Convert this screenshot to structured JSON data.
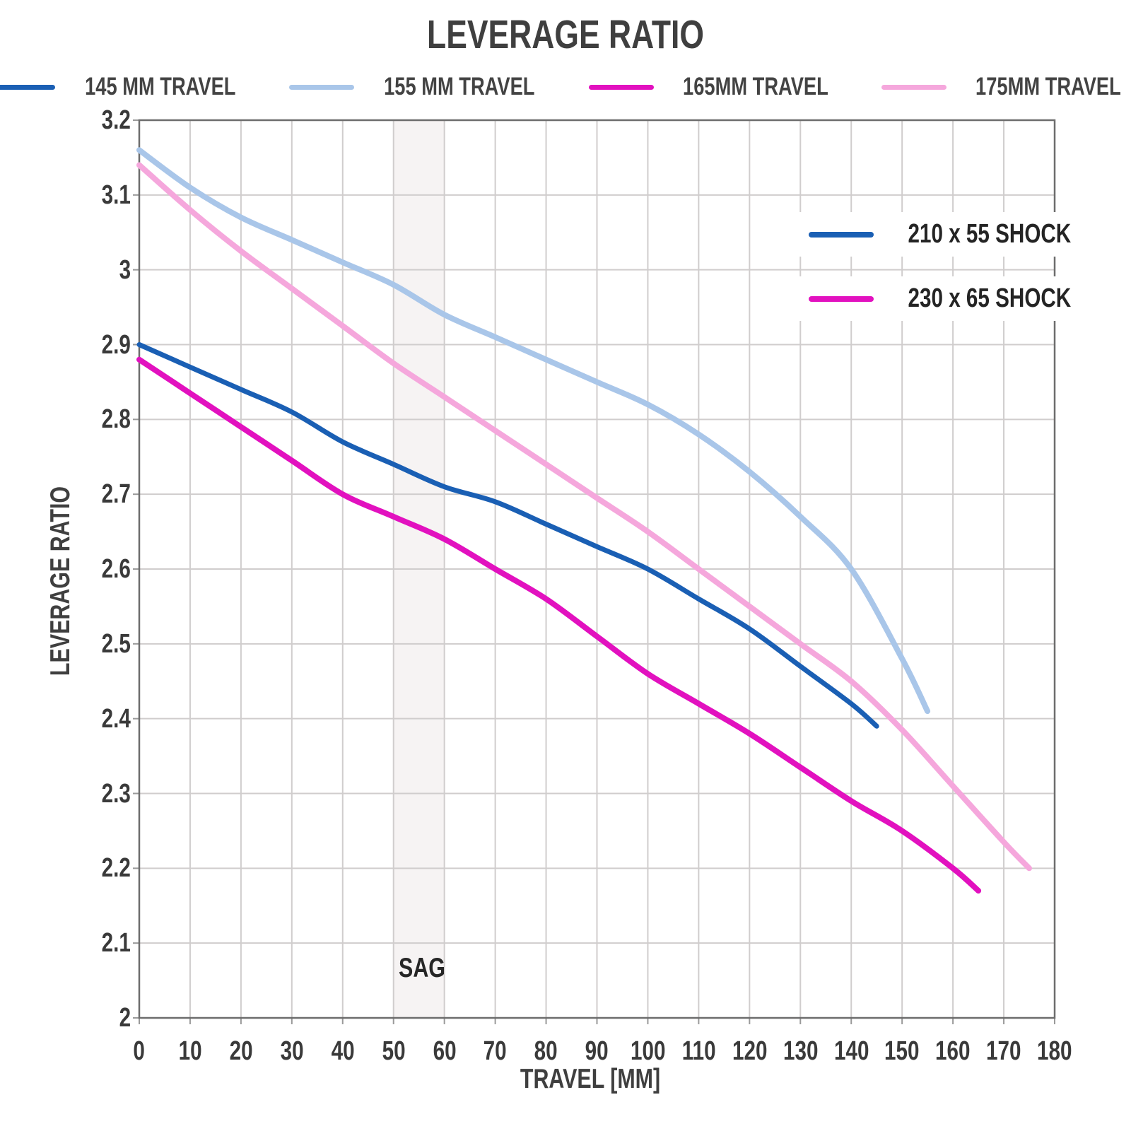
{
  "title": "LEVERAGE RATIO",
  "legend": {
    "items": [
      {
        "label": "145 MM TRAVEL",
        "color": "#1a5fb4"
      },
      {
        "label": "155 MM TRAVEL",
        "color": "#a9c6e9"
      },
      {
        "label": "165MM TRAVEL",
        "color": "#e211bf"
      },
      {
        "label": "175MM TRAVEL",
        "color": "#f5a7dc"
      }
    ]
  },
  "shock_legend": {
    "items": [
      {
        "label": "210 x 55 SHOCK",
        "color": "#1a5fb4"
      },
      {
        "label": "230 x 65 SHOCK",
        "color": "#e211bf"
      }
    ]
  },
  "axes": {
    "x": {
      "label": "TRAVEL [MM]",
      "min": 0,
      "max": 180,
      "tick_step": 10,
      "ticks": [
        "0",
        "10",
        "20",
        "30",
        "40",
        "50",
        "60",
        "70",
        "80",
        "90",
        "100",
        "110",
        "120",
        "130",
        "140",
        "150",
        "160",
        "170",
        "180"
      ]
    },
    "y": {
      "label": "LEVERAGE RATIO",
      "min": 2.0,
      "max": 3.2,
      "tick_step": 0.1,
      "ticks": [
        "3.2",
        "3.1",
        "3",
        "2.9",
        "2.8",
        "2.7",
        "2.6",
        "2.5",
        "2.4",
        "2.3",
        "2.2",
        "2.1",
        "2"
      ]
    }
  },
  "sag_band": {
    "label": "SAG",
    "x_start": 50,
    "x_end": 60,
    "fill": "#f6f3f3"
  },
  "colors": {
    "grid": "#d0cdcd",
    "plot_border": "#6d6d6d",
    "text": "#3f3f3f"
  },
  "chart_data": {
    "type": "line",
    "title": "LEVERAGE RATIO",
    "xlabel": "TRAVEL [MM]",
    "ylabel": "LEVERAGE RATIO",
    "xlim": [
      0,
      180
    ],
    "ylim": [
      2.0,
      3.2
    ],
    "grid": true,
    "legend_position": "top",
    "annotations": [
      {
        "text": "SAG",
        "x_range": [
          50,
          60
        ]
      }
    ],
    "series": [
      {
        "name": "145 MM TRAVEL",
        "shock": "210 x 55 SHOCK",
        "color": "#1a5fb4",
        "width": 7,
        "points": [
          [
            0,
            2.9
          ],
          [
            10,
            2.87
          ],
          [
            20,
            2.84
          ],
          [
            30,
            2.81
          ],
          [
            40,
            2.77
          ],
          [
            50,
            2.74
          ],
          [
            60,
            2.71
          ],
          [
            70,
            2.69
          ],
          [
            80,
            2.66
          ],
          [
            90,
            2.63
          ],
          [
            100,
            2.6
          ],
          [
            110,
            2.56
          ],
          [
            120,
            2.52
          ],
          [
            130,
            2.47
          ],
          [
            140,
            2.42
          ],
          [
            145,
            2.39
          ]
        ]
      },
      {
        "name": "155 MM TRAVEL",
        "shock": "210 x 55 SHOCK",
        "color": "#a9c6e9",
        "width": 8,
        "points": [
          [
            0,
            3.16
          ],
          [
            10,
            3.11
          ],
          [
            20,
            3.07
          ],
          [
            30,
            3.04
          ],
          [
            40,
            3.01
          ],
          [
            50,
            2.98
          ],
          [
            60,
            2.94
          ],
          [
            70,
            2.91
          ],
          [
            80,
            2.88
          ],
          [
            90,
            2.85
          ],
          [
            100,
            2.82
          ],
          [
            110,
            2.78
          ],
          [
            120,
            2.73
          ],
          [
            130,
            2.67
          ],
          [
            140,
            2.6
          ],
          [
            150,
            2.48
          ],
          [
            155,
            2.41
          ]
        ]
      },
      {
        "name": "165MM TRAVEL",
        "shock": "230 x 65 SHOCK",
        "color": "#e211bf",
        "width": 8,
        "points": [
          [
            0,
            2.88
          ],
          [
            10,
            2.835
          ],
          [
            20,
            2.79
          ],
          [
            30,
            2.745
          ],
          [
            40,
            2.7
          ],
          [
            50,
            2.67
          ],
          [
            60,
            2.64
          ],
          [
            70,
            2.6
          ],
          [
            80,
            2.56
          ],
          [
            90,
            2.51
          ],
          [
            100,
            2.46
          ],
          [
            110,
            2.42
          ],
          [
            120,
            2.38
          ],
          [
            130,
            2.335
          ],
          [
            140,
            2.29
          ],
          [
            150,
            2.25
          ],
          [
            160,
            2.2
          ],
          [
            165,
            2.17
          ]
        ]
      },
      {
        "name": "175MM TRAVEL",
        "shock": "230 x 65 SHOCK",
        "color": "#f5a7dc",
        "width": 8,
        "points": [
          [
            0,
            3.14
          ],
          [
            10,
            3.08
          ],
          [
            20,
            3.025
          ],
          [
            30,
            2.975
          ],
          [
            40,
            2.925
          ],
          [
            50,
            2.875
          ],
          [
            60,
            2.83
          ],
          [
            70,
            2.785
          ],
          [
            80,
            2.74
          ],
          [
            90,
            2.695
          ],
          [
            100,
            2.65
          ],
          [
            110,
            2.6
          ],
          [
            120,
            2.55
          ],
          [
            130,
            2.5
          ],
          [
            140,
            2.45
          ],
          [
            150,
            2.385
          ],
          [
            160,
            2.31
          ],
          [
            170,
            2.235
          ],
          [
            175,
            2.2
          ]
        ]
      }
    ]
  }
}
